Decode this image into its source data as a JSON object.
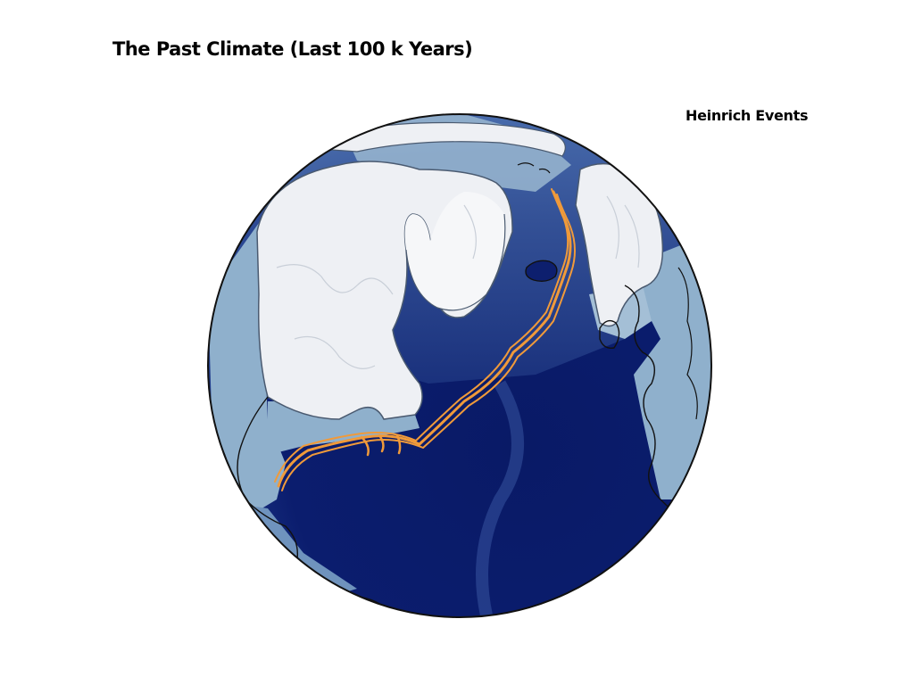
{
  "slide": {
    "title": "The Past Climate (Last 100 k Years)",
    "event_label": "Heinrich Events"
  },
  "map": {
    "projection": "orthographic",
    "region": "North Atlantic",
    "overlays": [
      "ice-sheets",
      "coastlines",
      "bathymetry",
      "iceberg-tracks"
    ],
    "colors": {
      "deep_ocean": "#0a1a66",
      "mid_ocean": "#2c4a9a",
      "shelf": "#8fb0cc",
      "ice_sheet": "#eef0f4",
      "coastline": "#111111",
      "iceberg_track": "#f09a3a"
    }
  }
}
